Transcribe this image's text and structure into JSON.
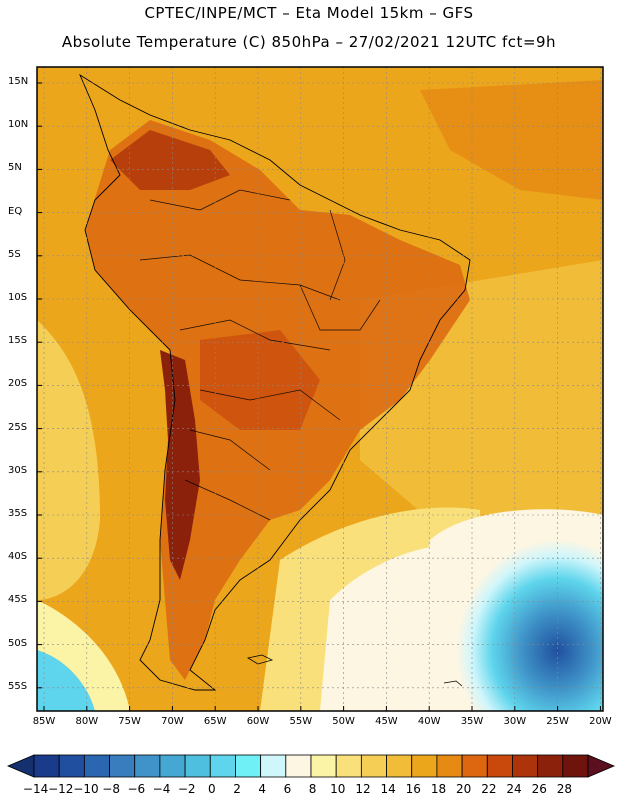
{
  "header": {
    "line1": "CPTEC/INPE/MCT –   Eta Model 15km – GFS",
    "line2": "Absolute Temperature (C) 850hPa – 27/02/2021 12UTC fct=9h"
  },
  "map": {
    "lat_labels": [
      "15N",
      "10N",
      "5N",
      "EQ",
      "5S",
      "10S",
      "15S",
      "20S",
      "25S",
      "30S",
      "35S",
      "40S",
      "45S",
      "50S",
      "55S"
    ],
    "lon_labels": [
      "85W",
      "80W",
      "75W",
      "70W",
      "65W",
      "60W",
      "55W",
      "50W",
      "45W",
      "40W",
      "35W",
      "30W",
      "25W",
      "20W"
    ]
  },
  "colorbar": {
    "labels": [
      "-14",
      "-12",
      "-10",
      "-8",
      "-6",
      "-4",
      "-2",
      "0",
      "2",
      "4",
      "6",
      "8",
      "10",
      "12",
      "14",
      "16",
      "18",
      "20",
      "22",
      "24",
      "26",
      "28"
    ],
    "colors": [
      "#1a3a8a",
      "#1f4f9e",
      "#2b66b0",
      "#3a7dbf",
      "#3f93c8",
      "#45a8d3",
      "#4fbfe0",
      "#5ed5ec",
      "#6ef0f6",
      "#cff6fb",
      "#fdf6e3",
      "#fbf3a5",
      "#f9e07a",
      "#f5cf55",
      "#f1bd38",
      "#eca61c",
      "#e68a14",
      "#dc6710",
      "#c9490c",
      "#ad330b",
      "#8b210b",
      "#6e140d"
    ],
    "under_color": "#14306e",
    "over_color": "#5c0f1e"
  }
}
